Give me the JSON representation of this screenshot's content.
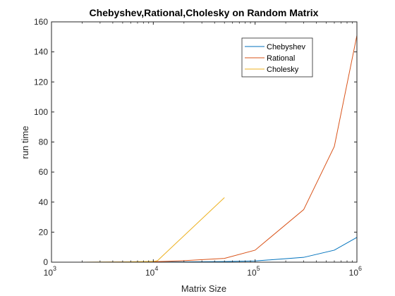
{
  "chart_data": {
    "type": "line",
    "title": "Chebyshev,Rational,Cholesky on Random Matrix",
    "xlabel": "Matrix Size",
    "ylabel": "run time",
    "xscale": "log",
    "xlim": [
      1000,
      1000000
    ],
    "ylim": [
      0,
      160
    ],
    "x_ticks": [
      1000,
      10000,
      100000,
      1000000
    ],
    "x_tick_labels": [
      {
        "base": "10",
        "exp": "3"
      },
      {
        "base": "10",
        "exp": "4"
      },
      {
        "base": "10",
        "exp": "5"
      },
      {
        "base": "10",
        "exp": "6"
      }
    ],
    "y_ticks": [
      0,
      20,
      40,
      60,
      80,
      100,
      120,
      140,
      160
    ],
    "y_tick_labels": [
      "0",
      "20",
      "40",
      "60",
      "80",
      "100",
      "120",
      "140",
      "160"
    ],
    "grid": false,
    "legend_position": "top-right",
    "series": [
      {
        "name": "Chebyshev",
        "color": "#0072bd",
        "points": [
          [
            1000,
            0
          ],
          [
            2000,
            0
          ],
          [
            3000,
            0
          ],
          [
            5000,
            0
          ],
          [
            10000,
            0.1
          ],
          [
            20000,
            0.2
          ],
          [
            50000,
            0.4
          ],
          [
            100000,
            0.8
          ],
          [
            300000,
            3.2
          ],
          [
            600000,
            8
          ],
          [
            1000000,
            16.5
          ]
        ]
      },
      {
        "name": "Rational",
        "color": "#d95319",
        "points": [
          [
            1000,
            0
          ],
          [
            2000,
            0
          ],
          [
            3000,
            0
          ],
          [
            5000,
            0.1
          ],
          [
            10000,
            0.3
          ],
          [
            20000,
            1
          ],
          [
            50000,
            2.5
          ],
          [
            100000,
            8
          ],
          [
            300000,
            35
          ],
          [
            600000,
            77
          ],
          [
            1000000,
            151
          ]
        ]
      },
      {
        "name": "Cholesky",
        "color": "#edb120",
        "points": [
          [
            1000,
            0
          ],
          [
            2000,
            0
          ],
          [
            3000,
            0.1
          ],
          [
            5000,
            0.2
          ],
          [
            10000,
            0.5
          ],
          [
            11000,
            1
          ],
          [
            50000,
            43
          ]
        ]
      }
    ]
  }
}
